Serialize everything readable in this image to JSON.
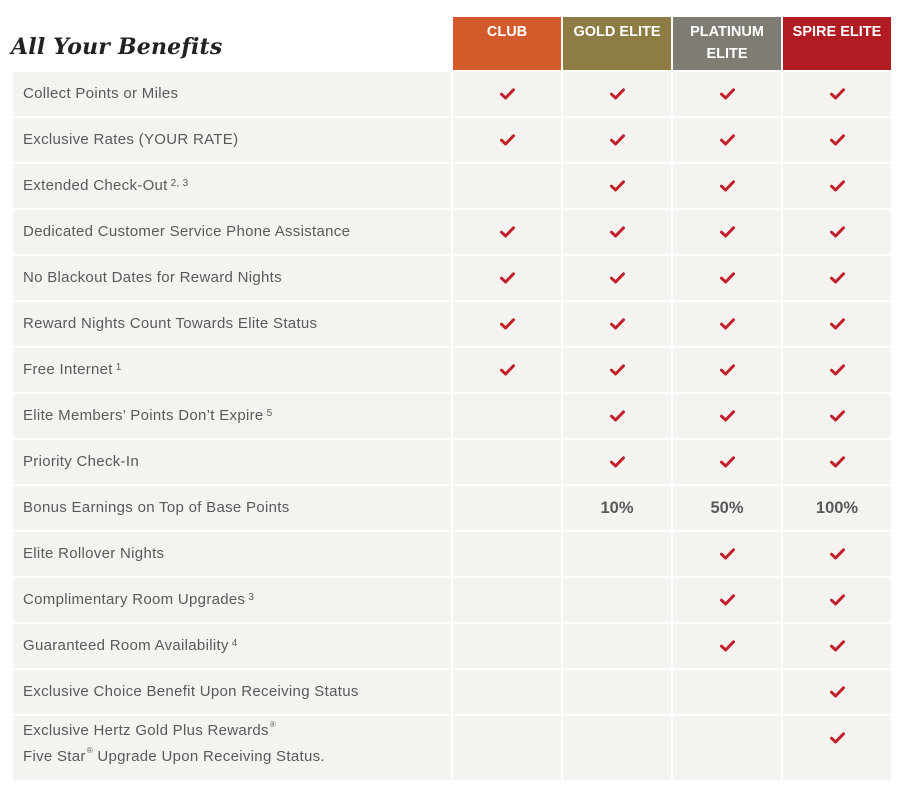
{
  "title": "All Your Benefits",
  "tiers": [
    {
      "label_line1": "CLUB",
      "label_line2": "",
      "color": "#d35a2a"
    },
    {
      "label_line1": "GOLD ELITE",
      "label_line2": "",
      "color": "#8d7d45"
    },
    {
      "label_line1": "PLATINUM",
      "label_line2": "ELITE",
      "color": "#7f7c74"
    },
    {
      "label_line1": "SPIRE ELITE",
      "label_line2": "",
      "color": "#b01c22"
    }
  ],
  "check_color": "#c0202b",
  "benefits": [
    {
      "label": "Collect Points or Miles",
      "sup": "",
      "values": [
        "check",
        "check",
        "check",
        "check"
      ]
    },
    {
      "label": "Exclusive Rates (YOUR RATE)",
      "sup": "",
      "values": [
        "check",
        "check",
        "check",
        "check"
      ]
    },
    {
      "label": "Extended Check-Out",
      "sup": "2, 3",
      "values": [
        "",
        "check",
        "check",
        "check"
      ]
    },
    {
      "label": "Dedicated Customer Service Phone Assistance",
      "sup": "",
      "values": [
        "check",
        "check",
        "check",
        "check"
      ]
    },
    {
      "label": "No Blackout Dates for Reward Nights",
      "sup": "",
      "values": [
        "check",
        "check",
        "check",
        "check"
      ]
    },
    {
      "label": "Reward Nights Count Towards Elite Status",
      "sup": "",
      "values": [
        "check",
        "check",
        "check",
        "check"
      ]
    },
    {
      "label": "Free Internet",
      "sup": "1",
      "values": [
        "check",
        "check",
        "check",
        "check"
      ]
    },
    {
      "label": "Elite Members’ Points Don’t Expire",
      "sup": "5",
      "values": [
        "",
        "check",
        "check",
        "check"
      ]
    },
    {
      "label": "Priority Check-In",
      "sup": "",
      "values": [
        "",
        "check",
        "check",
        "check"
      ]
    },
    {
      "label": "Bonus Earnings on Top of Base Points",
      "sup": "",
      "values": [
        "",
        "10%",
        "50%",
        "100%"
      ]
    },
    {
      "label": "Elite Rollover Nights",
      "sup": "",
      "values": [
        "",
        "",
        "check",
        "check"
      ]
    },
    {
      "label": "Complimentary Room Upgrades",
      "sup": "3",
      "values": [
        "",
        "",
        "check",
        "check"
      ]
    },
    {
      "label": "Guaranteed Room Availability",
      "sup": "4",
      "values": [
        "",
        "",
        "check",
        "check"
      ]
    },
    {
      "label": "Exclusive Choice Benefit Upon Receiving Status",
      "sup": "",
      "values": [
        "",
        "",
        "",
        "check"
      ]
    }
  ],
  "last_benefit": {
    "line1": "Exclusive Hertz Gold Plus Rewards",
    "reg1": "®",
    "line2a": "Five Star",
    "reg2": "®",
    "line2b": " Upgrade Upon Receiving Status.",
    "values": [
      "",
      "",
      "",
      "check"
    ]
  }
}
